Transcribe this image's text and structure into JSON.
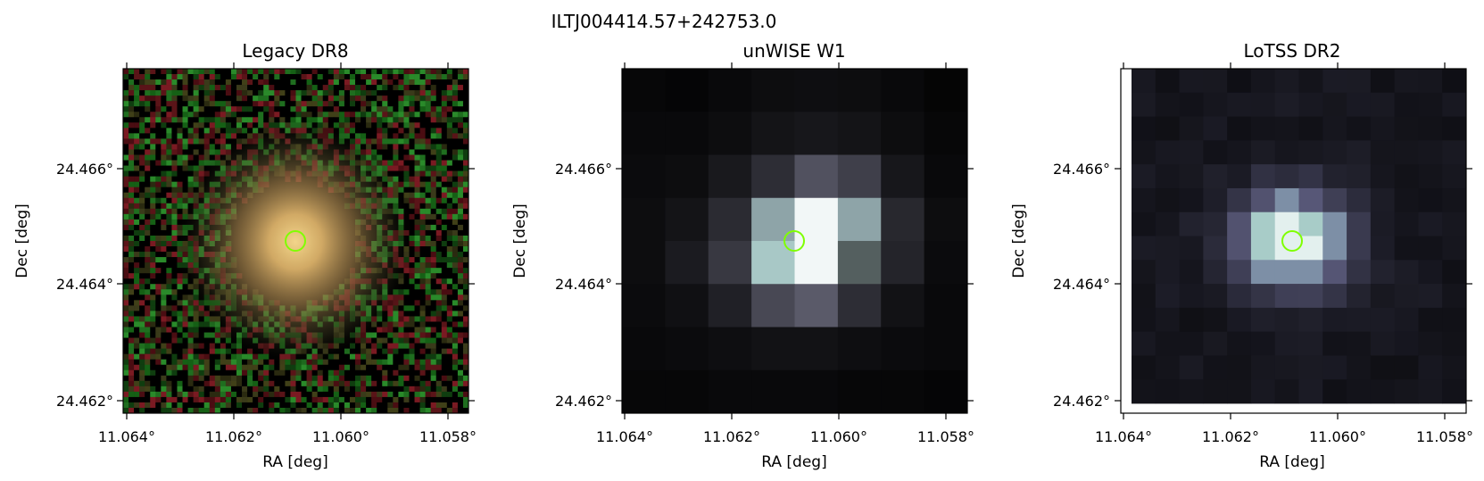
{
  "figure_title": "ILTJ004414.57+242753.0",
  "marker_color": "#7fff00",
  "panels": [
    {
      "title": "Legacy DR8",
      "xlabel": "RA [deg]",
      "ylabel": "Dec [deg]",
      "xticks": [
        "11.064°",
        "11.062°",
        "11.060°",
        "11.058°"
      ],
      "yticks": [
        "24.466°",
        "24.464°",
        "24.462°"
      ],
      "image": "optical RGB cutout, diffuse yellow galaxy centered on a noisy red/green background"
    },
    {
      "title": "unWISE W1",
      "xlabel": "RA [deg]",
      "ylabel": "Dec [deg]",
      "xticks": [
        "11.064°",
        "11.062°",
        "11.060°",
        "11.058°"
      ],
      "yticks": [
        "24.466°",
        "24.464°",
        "24.462°"
      ],
      "image": "coarse-pixel grayscale cutout, bright compact source at center"
    },
    {
      "title": "LoTSS DR2",
      "xlabel": "RA [deg]",
      "ylabel": "Dec [deg]",
      "xticks": [
        "11.064°",
        "11.062°",
        "11.060°",
        "11.058°"
      ],
      "yticks": [
        "24.466°",
        "24.464°",
        "24.462°"
      ],
      "image": "radio grayscale cutout with bluish tint, bright blob at center, blank strip at left edge"
    }
  ]
}
